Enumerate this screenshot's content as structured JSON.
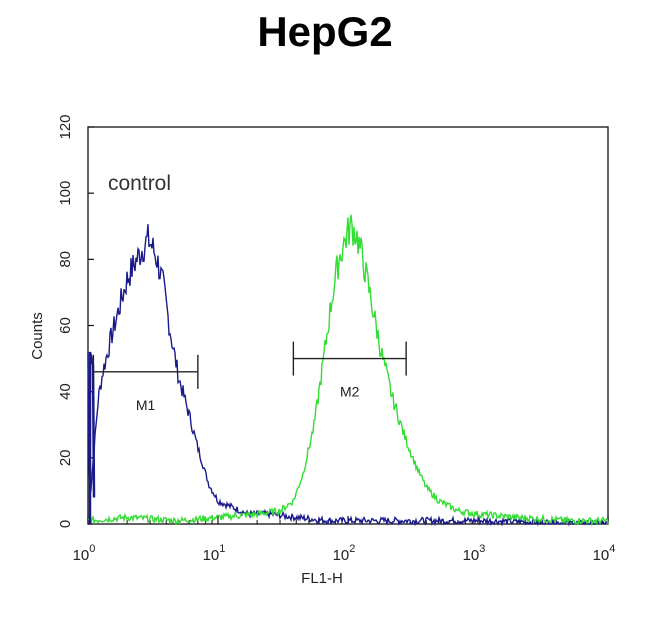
{
  "chart_data": {
    "type": "line",
    "title": "HepG2",
    "xlabel": "FL1-H",
    "ylabel": "Counts",
    "xscale": "log",
    "xlim": [
      1,
      10000
    ],
    "ylim": [
      0,
      120
    ],
    "x_ticks": [
      {
        "base": "10",
        "exp": "0",
        "value": 1
      },
      {
        "base": "10",
        "exp": "1",
        "value": 10
      },
      {
        "base": "10",
        "exp": "2",
        "value": 100
      },
      {
        "base": "10",
        "exp": "3",
        "value": 1000
      },
      {
        "base": "10",
        "exp": "4",
        "value": 10000
      }
    ],
    "y_ticks": [
      "0",
      "20",
      "40",
      "60",
      "80",
      "100",
      "120"
    ],
    "annotation": "control",
    "series": [
      {
        "color": "#1a1a8c",
        "points": [
          [
            1.0,
            52
          ],
          [
            1.02,
            14
          ],
          [
            1.05,
            10
          ],
          [
            1.1,
            20
          ],
          [
            1.2,
            38
          ],
          [
            1.3,
            46
          ],
          [
            1.5,
            56
          ],
          [
            1.7,
            64
          ],
          [
            2.0,
            74
          ],
          [
            2.3,
            79
          ],
          [
            2.6,
            83
          ],
          [
            2.9,
            86
          ],
          [
            3.1,
            84
          ],
          [
            3.4,
            80
          ],
          [
            3.8,
            72
          ],
          [
            4.3,
            58
          ],
          [
            5.0,
            44
          ],
          [
            6.0,
            33
          ],
          [
            7.0,
            23
          ],
          [
            8.5,
            12
          ],
          [
            10,
            7
          ],
          [
            13,
            5
          ],
          [
            17,
            3
          ],
          [
            25,
            3
          ],
          [
            40,
            2
          ],
          [
            70,
            1
          ],
          [
            150,
            1
          ],
          [
            400,
            1
          ],
          [
            1000,
            1
          ],
          [
            10000,
            0
          ]
        ]
      },
      {
        "color": "#33dd33",
        "points": [
          [
            1.0,
            1
          ],
          [
            2,
            2
          ],
          [
            5,
            1
          ],
          [
            10,
            2
          ],
          [
            20,
            3
          ],
          [
            30,
            4
          ],
          [
            38,
            7
          ],
          [
            45,
            15
          ],
          [
            55,
            30
          ],
          [
            65,
            50
          ],
          [
            75,
            68
          ],
          [
            85,
            80
          ],
          [
            95,
            86
          ],
          [
            105,
            90
          ],
          [
            115,
            88
          ],
          [
            130,
            80
          ],
          [
            150,
            68
          ],
          [
            180,
            52
          ],
          [
            220,
            38
          ],
          [
            270,
            27
          ],
          [
            330,
            18
          ],
          [
            400,
            11
          ],
          [
            500,
            7
          ],
          [
            700,
            4
          ],
          [
            1000,
            3
          ],
          [
            2000,
            2
          ],
          [
            5000,
            1
          ],
          [
            10000,
            1
          ]
        ]
      }
    ],
    "markers": [
      {
        "label": "M1",
        "x_from": 1.1,
        "x_to": 7,
        "y": 46
      },
      {
        "label": "M2",
        "x_from": 38,
        "x_to": 280,
        "y": 50
      }
    ]
  }
}
